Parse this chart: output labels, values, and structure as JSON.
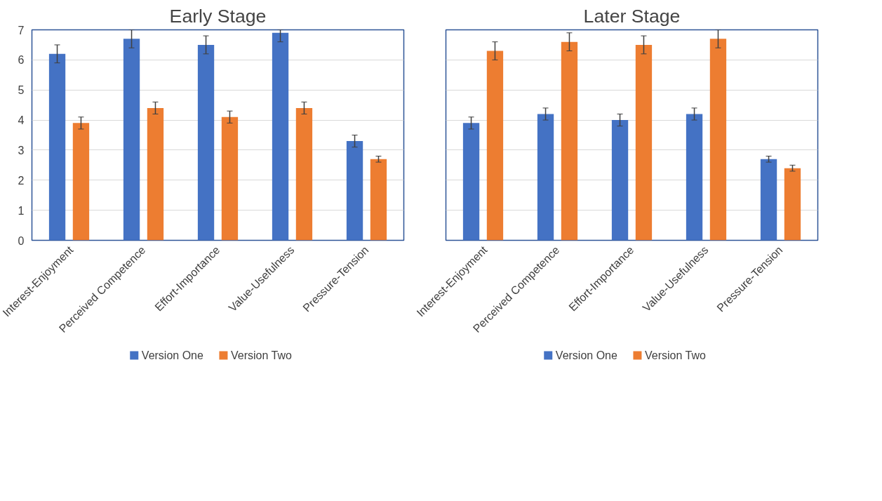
{
  "chart_data": [
    {
      "type": "bar",
      "title": "Early Stage",
      "categories": [
        "Interest-Enjoyment",
        "Perceived Competence",
        "Effort-Importance",
        "Value-Usefulness",
        "Pressure-Tension"
      ],
      "series": [
        {
          "name": "Version One",
          "color": "#4472c4",
          "values": [
            6.2,
            6.7,
            6.5,
            6.9,
            3.3
          ],
          "errors": [
            0.3,
            0.3,
            0.3,
            [
              6.6,
              7
            ],
            0.2
          ]
        },
        {
          "name": "Version Two",
          "color": "#ed7d31",
          "values": [
            3.9,
            4.4,
            4.1,
            4.4,
            2.7
          ],
          "errors": [
            0.2,
            0.2,
            0.2,
            0.2,
            0.1
          ]
        }
      ],
      "ylim": [
        0,
        7
      ],
      "yticks": [
        0,
        1,
        2,
        3,
        4,
        5,
        6,
        7
      ],
      "grid": "y",
      "legend": "bottom"
    },
    {
      "type": "bar",
      "title": "Later Stage",
      "categories": [
        "Interest-Enjoyment",
        "Perceived Competence",
        "Effort-Importance",
        "Value-Usefulness",
        "Pressure-Tension"
      ],
      "series": [
        {
          "name": "Version One",
          "color": "#4472c4",
          "values": [
            3.9,
            4.2,
            4.0,
            4.2,
            2.7
          ],
          "errors": [
            0.2,
            0.2,
            0.2,
            0.2,
            0.1
          ]
        },
        {
          "name": "Version Two",
          "color": "#ed7d31",
          "values": [
            6.3,
            6.6,
            6.5,
            6.7,
            2.4
          ],
          "errors": [
            0.3,
            0.3,
            0.3,
            0.3,
            0.1
          ]
        }
      ],
      "ylim": [
        0,
        7
      ],
      "yticks": [
        0,
        1,
        2,
        3,
        4,
        5,
        6,
        7
      ],
      "grid": "y",
      "tick_labels": "x",
      "legend": "bottom"
    }
  ]
}
